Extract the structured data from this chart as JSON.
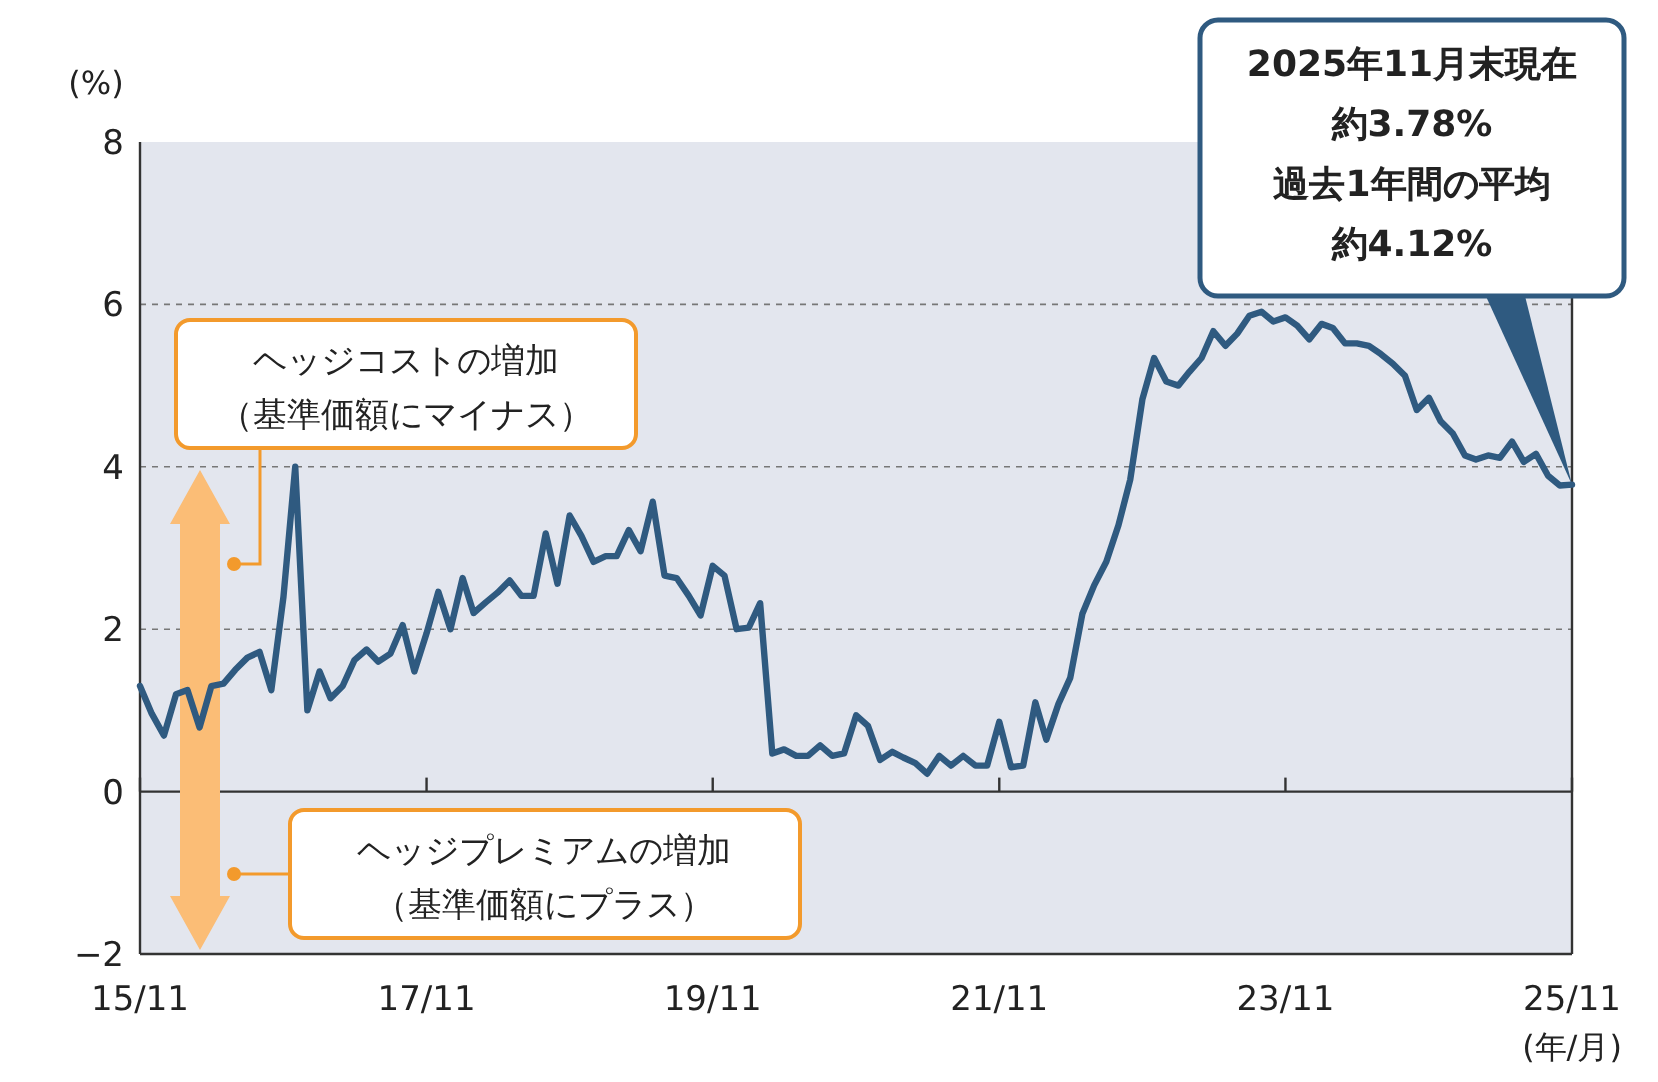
{
  "chart_data": {
    "type": "line",
    "ylabel": "(%)",
    "xlabel": "(年/月)",
    "x": [
      "2015-11",
      "2015-12",
      "2016-01",
      "2016-02",
      "2016-03",
      "2016-04",
      "2016-05",
      "2016-06",
      "2016-07",
      "2016-08",
      "2016-09",
      "2016-10",
      "2016-11",
      "2016-12",
      "2017-01",
      "2017-02",
      "2017-03",
      "2017-04",
      "2017-05",
      "2017-06",
      "2017-07",
      "2017-08",
      "2017-09",
      "2017-10",
      "2017-11",
      "2017-12",
      "2018-01",
      "2018-02",
      "2018-03",
      "2018-04",
      "2018-05",
      "2018-06",
      "2018-07",
      "2018-08",
      "2018-09",
      "2018-10",
      "2018-11",
      "2018-12",
      "2019-01",
      "2019-02",
      "2019-03",
      "2019-04",
      "2019-05",
      "2019-06",
      "2019-07",
      "2019-08",
      "2019-09",
      "2019-10",
      "2019-11",
      "2019-12",
      "2020-01",
      "2020-02",
      "2020-03",
      "2020-04",
      "2020-05",
      "2020-06",
      "2020-07",
      "2020-08",
      "2020-09",
      "2020-10",
      "2020-11",
      "2020-12",
      "2021-01",
      "2021-02",
      "2021-03",
      "2021-04",
      "2021-05",
      "2021-06",
      "2021-07",
      "2021-08",
      "2021-09",
      "2021-10",
      "2021-11",
      "2021-12",
      "2022-01",
      "2022-02",
      "2022-03",
      "2022-04",
      "2022-05",
      "2022-06",
      "2022-07",
      "2022-08",
      "2022-09",
      "2022-10",
      "2022-11",
      "2022-12",
      "2023-01",
      "2023-02",
      "2023-03",
      "2023-04",
      "2023-05",
      "2023-06",
      "2023-07",
      "2023-08",
      "2023-09",
      "2023-10",
      "2023-11",
      "2023-12",
      "2024-01",
      "2024-02",
      "2024-03",
      "2024-04",
      "2024-05",
      "2024-06",
      "2024-07",
      "2024-08",
      "2024-09",
      "2024-10",
      "2024-11",
      "2024-12",
      "2025-01",
      "2025-02",
      "2025-03",
      "2025-04",
      "2025-05",
      "2025-06",
      "2025-07",
      "2025-08",
      "2025-09",
      "2025-10",
      "2025-11"
    ],
    "series": [
      {
        "color": "#2f5a80",
        "values": [
          1.3,
          0.96,
          0.69,
          1.2,
          1.25,
          0.79,
          1.3,
          1.33,
          1.5,
          1.65,
          1.72,
          1.25,
          2.4,
          4.0,
          1.0,
          1.48,
          1.15,
          1.3,
          1.62,
          1.75,
          1.6,
          1.7,
          2.05,
          1.48,
          1.95,
          2.46,
          2.0,
          2.63,
          2.2,
          2.33,
          2.45,
          2.6,
          2.41,
          2.41,
          3.18,
          2.56,
          3.4,
          3.15,
          2.83,
          2.9,
          2.9,
          3.22,
          2.96,
          3.57,
          2.66,
          2.63,
          2.41,
          2.17,
          2.78,
          2.66,
          2.0,
          2.02,
          2.32,
          0.47,
          0.52,
          0.44,
          0.44,
          0.57,
          0.44,
          0.47,
          0.94,
          0.81,
          0.39,
          0.49,
          0.42,
          0.35,
          0.22,
          0.44,
          0.32,
          0.44,
          0.32,
          0.32,
          0.86,
          0.3,
          0.32,
          1.1,
          0.64,
          1.08,
          1.4,
          2.19,
          2.54,
          2.83,
          3.28,
          3.84,
          4.83,
          5.34,
          5.05,
          5.0,
          5.17,
          5.34,
          5.67,
          5.49,
          5.64,
          5.86,
          5.91,
          5.79,
          5.84,
          5.74,
          5.57,
          5.76,
          5.71,
          5.52,
          5.52,
          5.49,
          5.39,
          5.27,
          5.12,
          4.7,
          4.85,
          4.56,
          4.41,
          4.14,
          4.09,
          4.14,
          4.11,
          4.31,
          4.06,
          4.16,
          3.89,
          3.77,
          3.78
        ]
      }
    ],
    "xlim": [
      "2015-11",
      "2025-11"
    ],
    "xticks": [
      {
        "value": "2015-11",
        "label": "15/11"
      },
      {
        "value": "2017-11",
        "label": "17/11"
      },
      {
        "value": "2019-11",
        "label": "19/11"
      },
      {
        "value": "2021-11",
        "label": "21/11"
      },
      {
        "value": "2023-11",
        "label": "23/11"
      },
      {
        "value": "2025-11",
        "label": "25/11"
      }
    ],
    "ylim": [
      -2,
      8
    ],
    "yticks": [
      {
        "value": -2,
        "label": "−2"
      },
      0,
      2,
      4,
      6,
      8
    ],
    "grid": "y",
    "annotations": [
      "2025年11月末現在",
      "約3.78%",
      "過去1年間の平均",
      "約4.12%",
      "ヘッジコストの増加",
      "（基準価額にマイナス）",
      "ヘッジプレミアムの増加",
      "（基準価額にプラス）"
    ]
  }
}
